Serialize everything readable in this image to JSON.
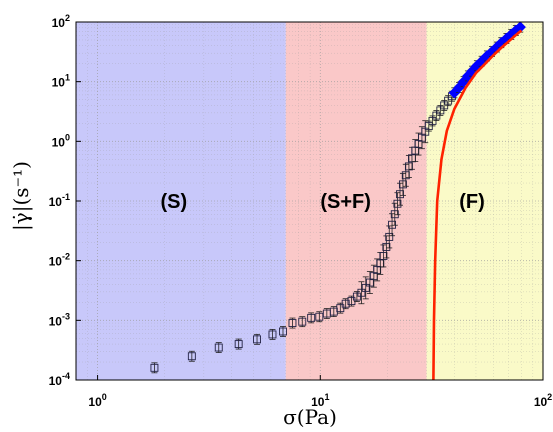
{
  "chart_data": {
    "type": "scatter",
    "xscale": "log",
    "yscale": "log",
    "xlim": [
      0.8,
      100
    ],
    "ylim": [
      0.0001,
      100
    ],
    "grid": true,
    "xlabel": "σ(Pa)",
    "ylabel": "|γ̇|(s⁻¹)",
    "x_ticks": [
      {
        "value": 1,
        "base": "10",
        "exp": "0"
      },
      {
        "value": 10,
        "base": "10",
        "exp": "1"
      },
      {
        "value": 100,
        "base": "10",
        "exp": "2"
      }
    ],
    "y_ticks": [
      {
        "value": 0.0001,
        "base": "10",
        "exp": "-4"
      },
      {
        "value": 0.001,
        "base": "10",
        "exp": "-3"
      },
      {
        "value": 0.01,
        "base": "10",
        "exp": "-2"
      },
      {
        "value": 0.1,
        "base": "10",
        "exp": "-1"
      },
      {
        "value": 1,
        "base": "10",
        "exp": "0"
      },
      {
        "value": 10,
        "base": "10",
        "exp": "1"
      },
      {
        "value": 100,
        "base": "10",
        "exp": "2"
      }
    ],
    "regions": [
      {
        "label": "(S)",
        "x_from": 0.8,
        "x_to": 7,
        "color": "#c8c8fa",
        "label_x": 2.2,
        "label_y": 0.1
      },
      {
        "label": "(S+F)",
        "x_from": 7,
        "x_to": 30,
        "color": "#fac8c8",
        "label_x": 13,
        "label_y": 0.1
      },
      {
        "label": "(F)",
        "x_from": 30,
        "x_to": 100,
        "color": "#fafac8",
        "label_x": 48,
        "label_y": 0.1
      }
    ],
    "series": [
      {
        "marker": "square",
        "color": "#222244",
        "points": [
          {
            "x": 1.8,
            "y": 0.00016
          },
          {
            "x": 2.65,
            "y": 0.00025
          },
          {
            "x": 3.5,
            "y": 0.00035
          },
          {
            "x": 4.3,
            "y": 0.0004
          },
          {
            "x": 5.2,
            "y": 0.00048
          },
          {
            "x": 6.1,
            "y": 0.00058
          },
          {
            "x": 6.8,
            "y": 0.00065
          },
          {
            "x": 7.5,
            "y": 0.0009
          },
          {
            "x": 8.3,
            "y": 0.00095
          },
          {
            "x": 9.1,
            "y": 0.0011
          },
          {
            "x": 9.9,
            "y": 0.00115
          },
          {
            "x": 10.7,
            "y": 0.0013
          },
          {
            "x": 11.5,
            "y": 0.0014
          },
          {
            "x": 12.3,
            "y": 0.0016
          },
          {
            "x": 13.0,
            "y": 0.0019
          },
          {
            "x": 13.8,
            "y": 0.0021
          },
          {
            "x": 14.6,
            "y": 0.0025
          },
          {
            "x": 15.3,
            "y": 0.0029
          },
          {
            "x": 16.0,
            "y": 0.0035
          },
          {
            "x": 16.7,
            "y": 0.0043
          },
          {
            "x": 17.4,
            "y": 0.0055
          },
          {
            "x": 18.0,
            "y": 0.007
          },
          {
            "x": 18.6,
            "y": 0.009
          },
          {
            "x": 19.2,
            "y": 0.012
          },
          {
            "x": 19.8,
            "y": 0.017
          },
          {
            "x": 20.4,
            "y": 0.025
          },
          {
            "x": 21.0,
            "y": 0.04
          },
          {
            "x": 21.6,
            "y": 0.06
          },
          {
            "x": 22.2,
            "y": 0.09
          },
          {
            "x": 22.8,
            "y": 0.13
          },
          {
            "x": 23.5,
            "y": 0.19
          },
          {
            "x": 24.2,
            "y": 0.27
          },
          {
            "x": 25.0,
            "y": 0.38
          },
          {
            "x": 25.8,
            "y": 0.52
          },
          {
            "x": 26.7,
            "y": 0.7
          },
          {
            "x": 27.6,
            "y": 0.9
          },
          {
            "x": 28.6,
            "y": 1.15
          },
          {
            "x": 29.6,
            "y": 1.45
          },
          {
            "x": 30.7,
            "y": 1.8
          },
          {
            "x": 31.9,
            "y": 2.2
          },
          {
            "x": 33.2,
            "y": 2.7
          },
          {
            "x": 34.6,
            "y": 3.3
          },
          {
            "x": 36.0,
            "y": 4.0
          },
          {
            "x": 37.5,
            "y": 4.8
          },
          {
            "x": 39.0,
            "y": 5.7
          }
        ]
      },
      {
        "marker": "diamond",
        "color": "#0000ff",
        "points": [
          {
            "x": 40,
            "y": 6.5
          },
          {
            "x": 42,
            "y": 8
          },
          {
            "x": 44,
            "y": 10
          },
          {
            "x": 46,
            "y": 12.5
          },
          {
            "x": 48,
            "y": 15
          },
          {
            "x": 50.5,
            "y": 18.5
          },
          {
            "x": 53,
            "y": 22
          },
          {
            "x": 56,
            "y": 27
          },
          {
            "x": 59,
            "y": 32
          },
          {
            "x": 62,
            "y": 38
          },
          {
            "x": 65,
            "y": 45
          },
          {
            "x": 68.5,
            "y": 53
          },
          {
            "x": 72,
            "y": 62
          },
          {
            "x": 75.5,
            "y": 72
          },
          {
            "x": 79,
            "y": 82
          }
        ]
      },
      {
        "marker": "none",
        "line": true,
        "color": "#ff2200",
        "points": [
          {
            "x": 32.2,
            "y": 0.0001
          },
          {
            "x": 32.4,
            "y": 0.001
          },
          {
            "x": 32.8,
            "y": 0.01
          },
          {
            "x": 33.5,
            "y": 0.1
          },
          {
            "x": 35,
            "y": 0.5
          },
          {
            "x": 37,
            "y": 1.5
          },
          {
            "x": 40,
            "y": 3.5
          },
          {
            "x": 45,
            "y": 8
          },
          {
            "x": 50,
            "y": 14
          },
          {
            "x": 55,
            "y": 20
          },
          {
            "x": 60,
            "y": 28
          },
          {
            "x": 65,
            "y": 37
          },
          {
            "x": 70,
            "y": 47
          },
          {
            "x": 75,
            "y": 59
          },
          {
            "x": 80,
            "y": 72
          }
        ]
      }
    ]
  }
}
